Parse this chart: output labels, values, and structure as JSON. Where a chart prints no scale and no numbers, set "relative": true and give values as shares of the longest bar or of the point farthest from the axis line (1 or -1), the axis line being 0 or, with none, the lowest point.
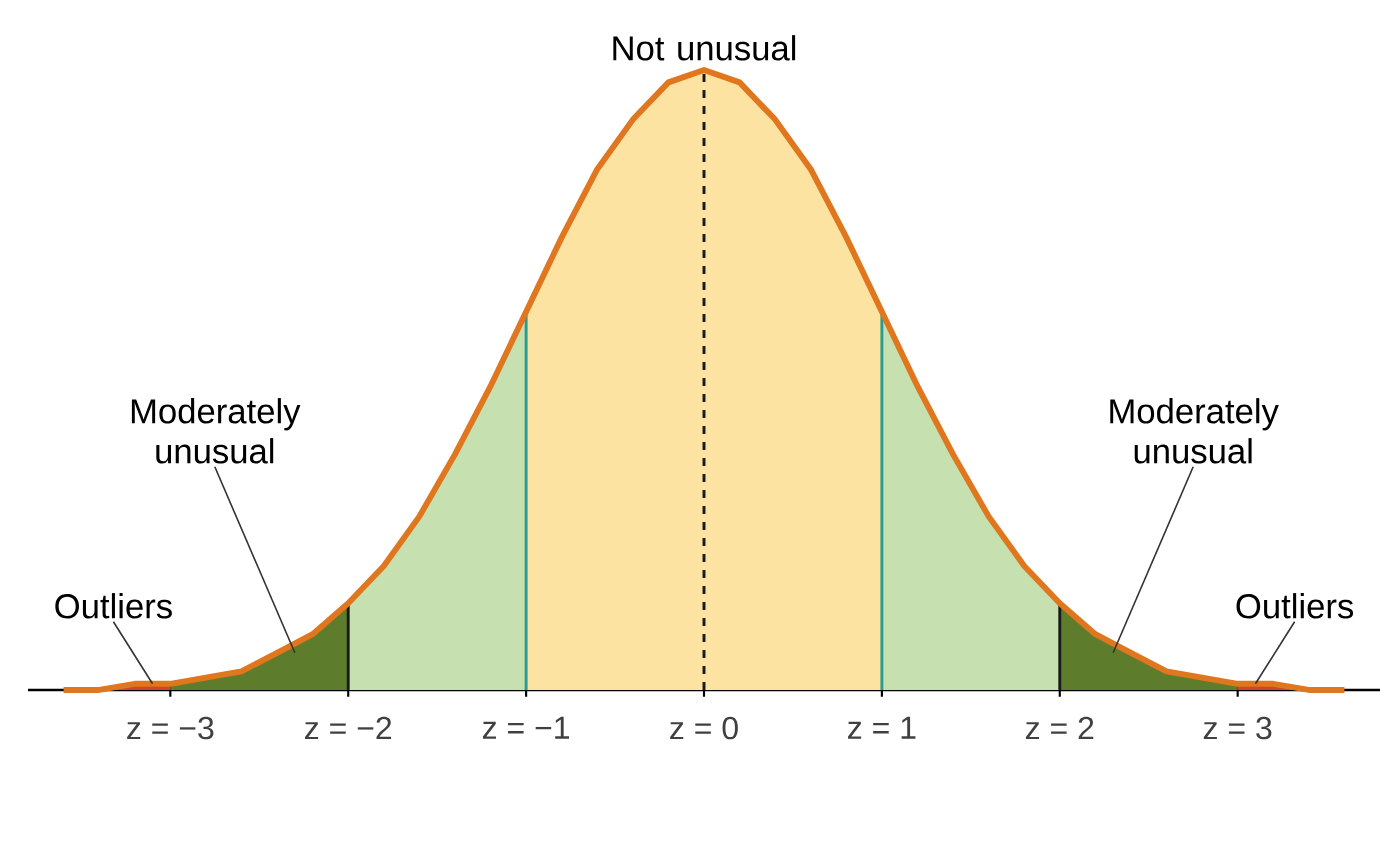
{
  "chart_data": {
    "type": "area",
    "relative": true,
    "series": [
      {
        "color": "#d0452a",
        "x": [
          -3.6,
          -3.4,
          -3.2,
          -3.0
        ],
        "values": [
          0,
          0,
          0.01,
          0.01
        ]
      },
      {
        "color": "#5e7d2c",
        "x": [
          -3.0,
          -2.8,
          -2.6,
          -2.4,
          -2.2,
          -2.0
        ],
        "values": [
          0.01,
          0.02,
          0.03,
          0.06,
          0.09,
          0.14
        ]
      },
      {
        "color": "#c6e0b0",
        "x": [
          -2.0,
          -1.8,
          -1.6,
          -1.4,
          -1.2,
          -1.0
        ],
        "values": [
          0.14,
          0.2,
          0.28,
          0.38,
          0.49,
          0.61
        ]
      },
      {
        "color": "#fde3a2",
        "x": [
          -1.0,
          -0.8,
          -0.6,
          -0.4,
          -0.2,
          0,
          0.2,
          0.4,
          0.6,
          0.8,
          1.0
        ],
        "values": [
          0.61,
          0.73,
          0.84,
          0.92,
          0.98,
          1,
          0.98,
          0.92,
          0.84,
          0.73,
          0.61
        ]
      },
      {
        "color": "#c6e0b0",
        "x": [
          1.0,
          1.2,
          1.4,
          1.6,
          1.8,
          2.0
        ],
        "values": [
          0.61,
          0.49,
          0.38,
          0.28,
          0.2,
          0.14
        ]
      },
      {
        "color": "#5e7d2c",
        "x": [
          2.0,
          2.2,
          2.4,
          2.6,
          2.8,
          3.0
        ],
        "values": [
          0.14,
          0.09,
          0.06,
          0.03,
          0.02,
          0.01
        ]
      },
      {
        "color": "#d0452a",
        "x": [
          3.0,
          3.2,
          3.4,
          3.6
        ],
        "values": [
          0.01,
          0.01,
          0,
          0
        ]
      },
      {
        "type": "line",
        "color": "#e0761e",
        "x": [
          -3.6,
          -3.4,
          -3.2,
          -3.0,
          -2.8,
          -2.6,
          -2.4,
          -2.2,
          -2.0,
          -1.8,
          -1.6,
          -1.4,
          -1.2,
          -1.0,
          -0.8,
          -0.6,
          -0.4,
          -0.2,
          0,
          0.2,
          0.4,
          0.6,
          0.8,
          1.0,
          1.2,
          1.4,
          1.6,
          1.8,
          2.0,
          2.2,
          2.4,
          2.6,
          2.8,
          3.0,
          3.2,
          3.4,
          3.6
        ],
        "values": [
          0,
          0,
          0.01,
          0.01,
          0.02,
          0.03,
          0.06,
          0.09,
          0.14,
          0.2,
          0.28,
          0.38,
          0.49,
          0.61,
          0.73,
          0.84,
          0.92,
          0.98,
          1,
          0.98,
          0.92,
          0.84,
          0.73,
          0.61,
          0.49,
          0.38,
          0.28,
          0.2,
          0.14,
          0.09,
          0.06,
          0.03,
          0.02,
          0.01,
          0.01,
          0,
          0
        ]
      }
    ],
    "xlim": [
      -3.8,
      3.8
    ],
    "xticks": [
      {
        "value": -3,
        "label": "z = −3"
      },
      {
        "value": -2,
        "label": "z = −2"
      },
      {
        "value": -1,
        "label": "z = −1"
      },
      {
        "value": 0,
        "label": "z = 0"
      },
      {
        "value": 1,
        "label": "z = 1"
      },
      {
        "value": 2,
        "label": "z = 2"
      },
      {
        "value": 3,
        "label": "z = 3"
      }
    ],
    "ref_lines": [
      {
        "axis": "x",
        "value": -2,
        "color": "#1a1a1a"
      },
      {
        "axis": "x",
        "value": -1,
        "color": "#2a9d8f"
      },
      {
        "axis": "x",
        "value": 0,
        "color": "#1a1a1a",
        "line_style": "dashed"
      },
      {
        "axis": "x",
        "value": 1,
        "color": "#2a9d8f"
      },
      {
        "axis": "x",
        "value": 2,
        "color": "#1a1a1a"
      }
    ],
    "annotations": [
      {
        "text": "Not unusual",
        "x": 0,
        "y": 1
      },
      {
        "text": "Moderately unusual",
        "x": -2.3,
        "y": 0.06
      },
      {
        "text": "Outliers",
        "x": -3.1,
        "y": 0.01
      },
      {
        "text": "Moderately unusual",
        "x": 2.3,
        "y": 0.06
      },
      {
        "text": "Outliers",
        "x": 3.1,
        "y": 0.01
      }
    ]
  }
}
